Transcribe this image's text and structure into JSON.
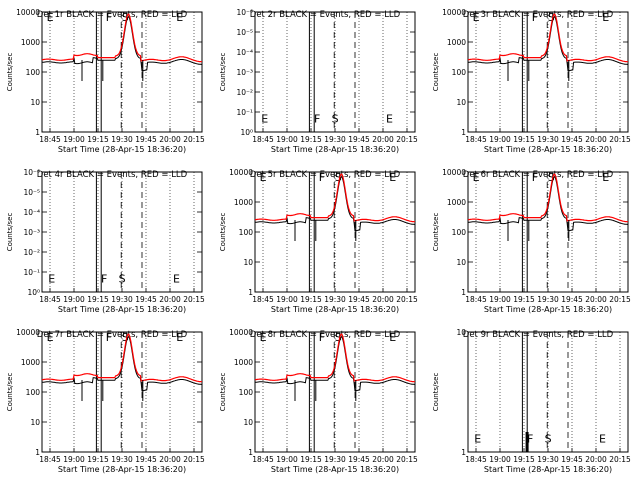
{
  "figure": {
    "colors": {
      "events": "#000000",
      "lld": "#ff0000",
      "frame": "#000000"
    },
    "xlabel": "Start Time (28-Apr-15 18:36:20)",
    "ylabel": "Counts/sec",
    "xticks": [
      "18:45",
      "19:00",
      "19:15",
      "19:30",
      "19:45",
      "20:00",
      "20:15"
    ]
  },
  "chart_data": [
    {
      "type": "line",
      "title": "Det 1r BLACK = Events, RED = LLD",
      "scale": "log",
      "yticks": [
        "1",
        "10",
        "100",
        "1000",
        "10000"
      ],
      "ylim": [
        1,
        10000
      ],
      "markers": [
        "E",
        "F",
        "S",
        "E"
      ],
      "has_data": true,
      "grid": true
    },
    {
      "type": "line",
      "title": "Det 2r BLACK = Events, RED = LLD",
      "scale": "log",
      "yticks": [
        "10⁰",
        "10⁻¹",
        "10⁻²",
        "10⁻³",
        "10⁻⁴",
        "10⁻⁵",
        "10⁻⁶"
      ],
      "ylim": [
        1e-06,
        1
      ],
      "markers": [
        "E",
        "F",
        "S",
        "E"
      ],
      "has_data": false,
      "grid": true
    },
    {
      "type": "line",
      "title": "Det 3r BLACK = Events, RED = LLD",
      "scale": "log",
      "yticks": [
        "1",
        "10",
        "100",
        "1000",
        "10000"
      ],
      "ylim": [
        1,
        10000
      ],
      "markers": [
        "E",
        "F",
        "S",
        "E"
      ],
      "has_data": true,
      "grid": true
    },
    {
      "type": "line",
      "title": "Det 4r BLACK = Events, RED = LLD",
      "scale": "log",
      "yticks": [
        "10⁰",
        "10⁻¹",
        "10⁻²",
        "10⁻³",
        "10⁻⁴",
        "10⁻⁵",
        "10⁻⁶"
      ],
      "ylim": [
        1e-06,
        1
      ],
      "markers": [
        "E",
        "F",
        "S",
        "E"
      ],
      "has_data": false,
      "grid": true
    },
    {
      "type": "line",
      "title": "Det 5r BLACK = Events, RED = LLD",
      "scale": "log",
      "yticks": [
        "1",
        "10",
        "100",
        "1000",
        "10000"
      ],
      "ylim": [
        1,
        10000
      ],
      "markers": [
        "E",
        "F",
        "S",
        "E"
      ],
      "has_data": true,
      "grid": true
    },
    {
      "type": "line",
      "title": "Det 6r BLACK = Events, RED = LLD",
      "scale": "log",
      "yticks": [
        "1",
        "10",
        "100",
        "1000",
        "10000"
      ],
      "ylim": [
        1,
        10000
      ],
      "markers": [
        "E",
        "F",
        "S",
        "E"
      ],
      "has_data": true,
      "grid": true
    },
    {
      "type": "line",
      "title": "Det 7r BLACK = Events, RED = LLD",
      "scale": "log",
      "yticks": [
        "1",
        "10",
        "100",
        "1000",
        "10000"
      ],
      "ylim": [
        1,
        10000
      ],
      "markers": [
        "E",
        "F",
        "S",
        "E"
      ],
      "has_data": true,
      "grid": true
    },
    {
      "type": "line",
      "title": "Det 8r BLACK = Events, RED = LLD",
      "scale": "log",
      "yticks": [
        "1",
        "10",
        "100",
        "1000",
        "10000"
      ],
      "ylim": [
        1,
        10000
      ],
      "markers": [
        "E",
        "F",
        "S",
        "E"
      ],
      "has_data": true,
      "grid": true
    },
    {
      "type": "line",
      "title": "Det 9r BLACK = Events, RED = LLD",
      "scale": "log",
      "yticks": [
        "1",
        "10"
      ],
      "ylim": [
        1,
        10
      ],
      "markers": [
        "E",
        "F",
        "S",
        "E"
      ],
      "has_data": false,
      "spike": true,
      "grid": true
    }
  ]
}
